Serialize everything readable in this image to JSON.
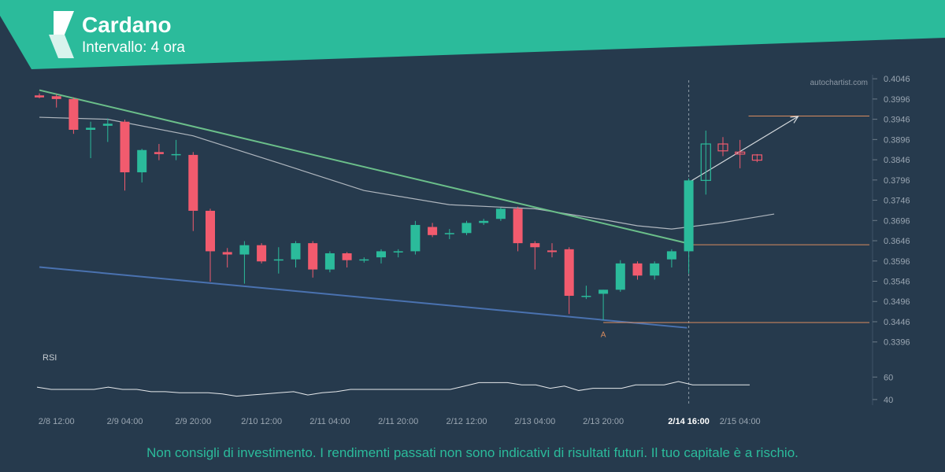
{
  "header": {
    "title": "Cardano",
    "subtitle": "Intervallo: 4 ora"
  },
  "watermark": "autochartist.com",
  "disclaimer": "Non consigli di investimento. I rendimenti passati non sono indicativi di risultati futuri. Il tuo capitale è a rischio.",
  "colors": {
    "background": "#263a4d",
    "accent": "#2bbb9b",
    "up": "#2bbb9b",
    "down": "#f25b6e",
    "resistance": "#6bbf8a",
    "support": "#4a72b0",
    "level": "#d98c5f",
    "ma": "#c8cdd2",
    "text": "#9aa6b2"
  },
  "chart_data": {
    "type": "candlestick",
    "ylim": [
      0.3376,
      0.4056
    ],
    "y_ticks": [
      "0.4046",
      "0.3996",
      "0.3946",
      "0.3896",
      "0.3846",
      "0.3796",
      "0.3746",
      "0.3696",
      "0.3646",
      "0.3596",
      "0.3546",
      "0.3496",
      "0.3446",
      "0.3396"
    ],
    "x_ticks": [
      {
        "label": "2/8 12:00",
        "index": 1
      },
      {
        "label": "2/9 04:00",
        "index": 5
      },
      {
        "label": "2/9 20:00",
        "index": 9
      },
      {
        "label": "2/10 12:00",
        "index": 13
      },
      {
        "label": "2/11 04:00",
        "index": 17
      },
      {
        "label": "2/11 20:00",
        "index": 21
      },
      {
        "label": "2/12 12:00",
        "index": 25
      },
      {
        "label": "2/13 04:00",
        "index": 29
      },
      {
        "label": "2/13 20:00",
        "index": 33
      },
      {
        "label": "2/14 16:00",
        "index": 38,
        "highlight": true
      },
      {
        "label": "2/15 04:00",
        "index": 41
      }
    ],
    "candles": [
      {
        "o": 0.4005,
        "h": 0.401,
        "l": 0.3998,
        "c": 0.4
      },
      {
        "o": 0.4003,
        "h": 0.4008,
        "l": 0.3975,
        "c": 0.3996
      },
      {
        "o": 0.3996,
        "h": 0.4,
        "l": 0.391,
        "c": 0.392
      },
      {
        "o": 0.392,
        "h": 0.394,
        "l": 0.385,
        "c": 0.3925
      },
      {
        "o": 0.393,
        "h": 0.3948,
        "l": 0.389,
        "c": 0.3935
      },
      {
        "o": 0.394,
        "h": 0.3945,
        "l": 0.377,
        "c": 0.3815
      },
      {
        "o": 0.3815,
        "h": 0.3873,
        "l": 0.379,
        "c": 0.387
      },
      {
        "o": 0.3865,
        "h": 0.3885,
        "l": 0.3845,
        "c": 0.386
      },
      {
        "o": 0.386,
        "h": 0.3895,
        "l": 0.3845,
        "c": 0.386
      },
      {
        "o": 0.3858,
        "h": 0.3865,
        "l": 0.367,
        "c": 0.372
      },
      {
        "o": 0.372,
        "h": 0.3725,
        "l": 0.3545,
        "c": 0.362
      },
      {
        "o": 0.3618,
        "h": 0.3628,
        "l": 0.358,
        "c": 0.3612
      },
      {
        "o": 0.3612,
        "h": 0.3645,
        "l": 0.354,
        "c": 0.3635
      },
      {
        "o": 0.3635,
        "h": 0.364,
        "l": 0.359,
        "c": 0.3595
      },
      {
        "o": 0.3598,
        "h": 0.363,
        "l": 0.3565,
        "c": 0.36
      },
      {
        "o": 0.36,
        "h": 0.3645,
        "l": 0.358,
        "c": 0.364
      },
      {
        "o": 0.364,
        "h": 0.3645,
        "l": 0.3555,
        "c": 0.3575
      },
      {
        "o": 0.3575,
        "h": 0.362,
        "l": 0.3568,
        "c": 0.3615
      },
      {
        "o": 0.3615,
        "h": 0.3618,
        "l": 0.358,
        "c": 0.3598
      },
      {
        "o": 0.3598,
        "h": 0.3605,
        "l": 0.3592,
        "c": 0.36
      },
      {
        "o": 0.3605,
        "h": 0.3625,
        "l": 0.359,
        "c": 0.362
      },
      {
        "o": 0.362,
        "h": 0.3625,
        "l": 0.3605,
        "c": 0.362
      },
      {
        "o": 0.362,
        "h": 0.3695,
        "l": 0.3612,
        "c": 0.3685
      },
      {
        "o": 0.368,
        "h": 0.369,
        "l": 0.3655,
        "c": 0.366
      },
      {
        "o": 0.3665,
        "h": 0.3675,
        "l": 0.365,
        "c": 0.3665
      },
      {
        "o": 0.3665,
        "h": 0.3695,
        "l": 0.366,
        "c": 0.369
      },
      {
        "o": 0.369,
        "h": 0.37,
        "l": 0.3685,
        "c": 0.3695
      },
      {
        "o": 0.37,
        "h": 0.3728,
        "l": 0.3695,
        "c": 0.3725
      },
      {
        "o": 0.3725,
        "h": 0.373,
        "l": 0.362,
        "c": 0.364
      },
      {
        "o": 0.364,
        "h": 0.3645,
        "l": 0.3575,
        "c": 0.363
      },
      {
        "o": 0.3622,
        "h": 0.364,
        "l": 0.3605,
        "c": 0.3618
      },
      {
        "o": 0.3625,
        "h": 0.363,
        "l": 0.3465,
        "c": 0.351
      },
      {
        "o": 0.351,
        "h": 0.3535,
        "l": 0.3502,
        "c": 0.351
      },
      {
        "o": 0.3515,
        "h": 0.3525,
        "l": 0.345,
        "c": 0.3525
      },
      {
        "o": 0.3525,
        "h": 0.3598,
        "l": 0.352,
        "c": 0.359
      },
      {
        "o": 0.359,
        "h": 0.3595,
        "l": 0.355,
        "c": 0.356
      },
      {
        "o": 0.356,
        "h": 0.3595,
        "l": 0.355,
        "c": 0.359
      },
      {
        "o": 0.36,
        "h": 0.3625,
        "l": 0.358,
        "c": 0.362
      },
      {
        "o": 0.362,
        "h": 0.38,
        "l": 0.3565,
        "c": 0.3795
      },
      {
        "o": 0.3795,
        "h": 0.3918,
        "l": 0.376,
        "c": 0.3885
      },
      {
        "o": 0.3885,
        "h": 0.3902,
        "l": 0.3855,
        "c": 0.3868
      },
      {
        "o": 0.3865,
        "h": 0.3895,
        "l": 0.3825,
        "c": 0.386
      },
      {
        "o": 0.3858,
        "h": 0.386,
        "l": 0.384,
        "c": 0.3845
      }
    ],
    "moving_average": [
      {
        "i": 0,
        "v": 0.3951
      },
      {
        "i": 4,
        "v": 0.3946
      },
      {
        "i": 9,
        "v": 0.3905
      },
      {
        "i": 14,
        "v": 0.3838
      },
      {
        "i": 19,
        "v": 0.377
      },
      {
        "i": 24,
        "v": 0.3735
      },
      {
        "i": 29,
        "v": 0.3725
      },
      {
        "i": 33,
        "v": 0.3698
      },
      {
        "i": 35,
        "v": 0.3683
      },
      {
        "i": 37,
        "v": 0.3675
      },
      {
        "i": 38,
        "v": 0.368
      },
      {
        "i": 40,
        "v": 0.3691
      },
      {
        "i": 42,
        "v": 0.3705
      },
      {
        "i": 43,
        "v": 0.3712
      }
    ],
    "pattern": {
      "resistance": [
        {
          "i": 0,
          "v": 0.4018
        },
        {
          "i": 37.9,
          "v": 0.364
        }
      ],
      "support": [
        {
          "i": 0,
          "v": 0.3581
        },
        {
          "i": 37.9,
          "v": 0.3431
        }
      ],
      "breakout_index": 38,
      "forecast": [
        {
          "i": 38,
          "v": 0.379
        },
        {
          "i": 44.4,
          "v": 0.3953
        }
      ],
      "levels": [
        {
          "value": 0.3954,
          "from": 41.5
        },
        {
          "value": 0.3636,
          "from": 38.2
        },
        {
          "value": 0.3444,
          "from": 33
        }
      ],
      "point_label": "A",
      "point_index": 33,
      "point_value": 0.3431
    },
    "rsi": {
      "label": "RSI",
      "ylim": [
        35,
        70
      ],
      "y_ticks": [
        "60",
        "40"
      ],
      "values": [
        51,
        49,
        49,
        49,
        49,
        51,
        49,
        49,
        47,
        47,
        46,
        46,
        46,
        45,
        43,
        44,
        45,
        46,
        47,
        44,
        46,
        47,
        49,
        49,
        49,
        49,
        49,
        49,
        49,
        49,
        52,
        55,
        55,
        55,
        53,
        53,
        50,
        52,
        48,
        50,
        50,
        50,
        53,
        53,
        53,
        56,
        53,
        53,
        53,
        53,
        53
      ]
    }
  }
}
